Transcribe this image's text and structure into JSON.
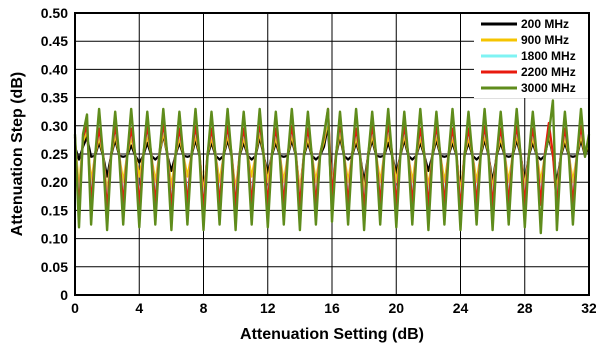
{
  "chart_data": {
    "type": "line",
    "title": "",
    "xlabel": "Attenuation Setting (dB)",
    "ylabel": "Attenuation Step (dB)",
    "xlim": [
      0,
      32
    ],
    "ylim": [
      0,
      0.5
    ],
    "x_ticks": [
      "0",
      "4",
      "8",
      "12",
      "16",
      "20",
      "24",
      "28",
      "32"
    ],
    "y_ticks": [
      "0",
      "0.05",
      "0.10",
      "0.15",
      "0.20",
      "0.25",
      "0.30",
      "0.35",
      "0.40",
      "0.45",
      "0.50"
    ],
    "grid": true,
    "legend_position": "top-right",
    "x_step": 0.25,
    "series": [
      {
        "name": "200 MHz",
        "color": "#000000",
        "baseline": 0.255,
        "ripple": 0.008,
        "dips": {
          "0.25": 0.24,
          "1": 0.245,
          "2": 0.21,
          "3": 0.245,
          "4": 0.235,
          "5": 0.24,
          "6": 0.22,
          "7": 0.245,
          "8": 0.175,
          "9": 0.24,
          "10": 0.175,
          "11": 0.24,
          "12": 0.215,
          "13": 0.245,
          "14": 0.18,
          "15": 0.24,
          "16": 0.16,
          "17": 0.24,
          "18": 0.2,
          "19": 0.245,
          "20": 0.215,
          "21": 0.24,
          "22": 0.22,
          "23": 0.245,
          "24": 0.175,
          "25": 0.24,
          "26": 0.2,
          "27": 0.245,
          "28": 0.2,
          "29": 0.24,
          "30": 0.2,
          "31": 0.245
        },
        "peaks": {
          "0.75": 0.28,
          "1.5": 0.27,
          "2.5": 0.275,
          "3.5": 0.265,
          "4.5": 0.27,
          "5.5": 0.285,
          "6.5": 0.27,
          "7.5": 0.275,
          "8.5": 0.27,
          "9.5": 0.275,
          "10.5": 0.27,
          "11.5": 0.28,
          "12.5": 0.27,
          "13.5": 0.275,
          "14.5": 0.27,
          "15.75": 0.3,
          "16.5": 0.28,
          "17.5": 0.27,
          "18.5": 0.275,
          "19.5": 0.27,
          "20.5": 0.275,
          "21.5": 0.27,
          "22.5": 0.275,
          "23.5": 0.27,
          "24.5": 0.27,
          "25.5": 0.275,
          "26.5": 0.27,
          "27.5": 0.275,
          "28.5": 0.27,
          "29.5": 0.28,
          "30.5": 0.27,
          "31.5": 0.275
        }
      },
      {
        "name": "900 MHz",
        "color": "#f5c400",
        "baseline": 0.26,
        "ripple": 0.012,
        "dips": {
          "0.25": 0.19,
          "1": 0.2,
          "2": 0.18,
          "3": 0.2,
          "4": 0.21,
          "5": 0.2,
          "6": 0.19,
          "7": 0.21,
          "8": 0.18,
          "9": 0.2,
          "10": 0.185,
          "11": 0.21,
          "12": 0.2,
          "13": 0.2,
          "14": 0.185,
          "15": 0.2,
          "16": 0.19,
          "17": 0.2,
          "18": 0.18,
          "19": 0.2,
          "20": 0.2,
          "21": 0.2,
          "22": 0.19,
          "23": 0.2,
          "24": 0.18,
          "25": 0.2,
          "26": 0.185,
          "27": 0.2,
          "28": 0.19,
          "29": 0.2,
          "30": 0.185,
          "31": 0.2
        },
        "peaks": {
          "0.75": 0.29,
          "1.5": 0.28,
          "2.5": 0.285,
          "3.5": 0.28,
          "4.5": 0.285,
          "5.5": 0.29,
          "6.5": 0.28,
          "7.5": 0.285,
          "8.5": 0.28,
          "9.5": 0.285,
          "10.5": 0.28,
          "11.5": 0.29,
          "12.5": 0.28,
          "13.5": 0.285,
          "14.5": 0.28,
          "15.75": 0.31,
          "16.5": 0.29,
          "17.5": 0.28,
          "18.5": 0.285,
          "19.5": 0.285,
          "20.5": 0.285,
          "21.5": 0.28,
          "22.5": 0.285,
          "23.5": 0.28,
          "24.5": 0.28,
          "25.5": 0.285,
          "26.5": 0.28,
          "27.5": 0.285,
          "28.5": 0.28,
          "29.5": 0.29,
          "30.5": 0.28,
          "31.5": 0.285
        }
      },
      {
        "name": "1800 MHz",
        "color": "#7ff3f3",
        "baseline": 0.265,
        "ripple": 0.014,
        "dips": {
          "0.25": 0.16,
          "1": 0.17,
          "2": 0.16,
          "3": 0.17,
          "4": 0.17,
          "5": 0.17,
          "6": 0.16,
          "7": 0.17,
          "8": 0.16,
          "9": 0.17,
          "10": 0.165,
          "11": 0.17,
          "12": 0.17,
          "13": 0.17,
          "14": 0.165,
          "15": 0.17,
          "16": 0.18,
          "17": 0.17,
          "18": 0.16,
          "19": 0.17,
          "20": 0.17,
          "21": 0.17,
          "22": 0.165,
          "23": 0.17,
          "24": 0.16,
          "25": 0.17,
          "26": 0.165,
          "27": 0.17,
          "28": 0.17,
          "29": 0.17,
          "30": 0.165,
          "31": 0.17
        },
        "peaks": {
          "0.75": 0.3,
          "1.5": 0.29,
          "2.5": 0.295,
          "3.5": 0.29,
          "4.5": 0.295,
          "5.5": 0.3,
          "6.5": 0.29,
          "7.5": 0.295,
          "8.5": 0.29,
          "9.5": 0.295,
          "10.5": 0.29,
          "11.5": 0.3,
          "12.5": 0.29,
          "13.5": 0.295,
          "14.5": 0.29,
          "15.75": 0.32,
          "16.5": 0.3,
          "17.5": 0.29,
          "18.5": 0.295,
          "19.5": 0.3,
          "20.5": 0.295,
          "21.5": 0.29,
          "22.5": 0.295,
          "23.5": 0.29,
          "24.5": 0.29,
          "25.5": 0.295,
          "26.5": 0.29,
          "27.5": 0.295,
          "28.5": 0.29,
          "29.5": 0.3,
          "30.5": 0.29,
          "31.5": 0.295
        }
      },
      {
        "name": "2200 MHz",
        "color": "#e81a0e",
        "baseline": 0.265,
        "ripple": 0.015,
        "dips": {
          "0.25": 0.15,
          "1": 0.16,
          "2": 0.15,
          "3": 0.16,
          "4": 0.16,
          "5": 0.16,
          "6": 0.15,
          "7": 0.16,
          "8": 0.15,
          "9": 0.16,
          "10": 0.155,
          "11": 0.16,
          "12": 0.16,
          "13": 0.16,
          "14": 0.155,
          "15": 0.16,
          "16": 0.175,
          "17": 0.16,
          "18": 0.15,
          "19": 0.16,
          "20": 0.16,
          "21": 0.16,
          "22": 0.155,
          "23": 0.16,
          "24": 0.15,
          "25": 0.16,
          "26": 0.155,
          "27": 0.16,
          "28": 0.16,
          "29": 0.16,
          "30": 0.155,
          "31": 0.16
        },
        "peaks": {
          "0.75": 0.3,
          "1.5": 0.295,
          "2.5": 0.3,
          "3.5": 0.295,
          "4.5": 0.3,
          "5.5": 0.305,
          "6.5": 0.295,
          "7.5": 0.3,
          "8.5": 0.295,
          "9.5": 0.3,
          "10.5": 0.295,
          "11.5": 0.305,
          "12.5": 0.295,
          "13.5": 0.3,
          "14.5": 0.295,
          "15.75": 0.33,
          "16.5": 0.305,
          "17.5": 0.295,
          "18.5": 0.3,
          "19.5": 0.305,
          "20.5": 0.3,
          "21.5": 0.295,
          "22.5": 0.3,
          "23.5": 0.295,
          "24.5": 0.295,
          "25.5": 0.3,
          "26.5": 0.295,
          "27.5": 0.3,
          "28.5": 0.295,
          "29.5": 0.305,
          "30.5": 0.295,
          "31.5": 0.3
        }
      },
      {
        "name": "3000 MHz",
        "color": "#5f8c1c",
        "baseline": 0.265,
        "ripple": 0.02,
        "dips": {
          "0.25": 0.12,
          "1": 0.125,
          "2": 0.115,
          "3": 0.125,
          "4": 0.12,
          "5": 0.125,
          "6": 0.115,
          "7": 0.125,
          "8": 0.115,
          "9": 0.125,
          "10": 0.115,
          "11": 0.125,
          "12": 0.12,
          "13": 0.125,
          "14": 0.115,
          "15": 0.125,
          "16": 0.13,
          "17": 0.125,
          "18": 0.115,
          "19": 0.125,
          "20": 0.12,
          "21": 0.125,
          "22": 0.115,
          "23": 0.125,
          "24": 0.115,
          "25": 0.125,
          "26": 0.115,
          "27": 0.125,
          "28": 0.12,
          "29": 0.11,
          "30": 0.115,
          "31": 0.125
        },
        "peaks": {
          "0.75": 0.32,
          "1.5": 0.33,
          "2.5": 0.325,
          "3.5": 0.33,
          "4.5": 0.325,
          "5.5": 0.33,
          "6.5": 0.325,
          "7.5": 0.33,
          "8.5": 0.325,
          "9.5": 0.33,
          "10.5": 0.325,
          "11.5": 0.33,
          "12.5": 0.325,
          "13.5": 0.33,
          "14.5": 0.325,
          "15.75": 0.33,
          "16.5": 0.325,
          "17.5": 0.33,
          "18.5": 0.325,
          "19.5": 0.33,
          "20.5": 0.325,
          "21.5": 0.33,
          "22.5": 0.325,
          "23.5": 0.33,
          "24.5": 0.325,
          "25.5": 0.33,
          "26.5": 0.325,
          "27.5": 0.33,
          "28.5": 0.325,
          "29.75": 0.345,
          "30.5": 0.325,
          "31.5": 0.33
        }
      }
    ]
  }
}
